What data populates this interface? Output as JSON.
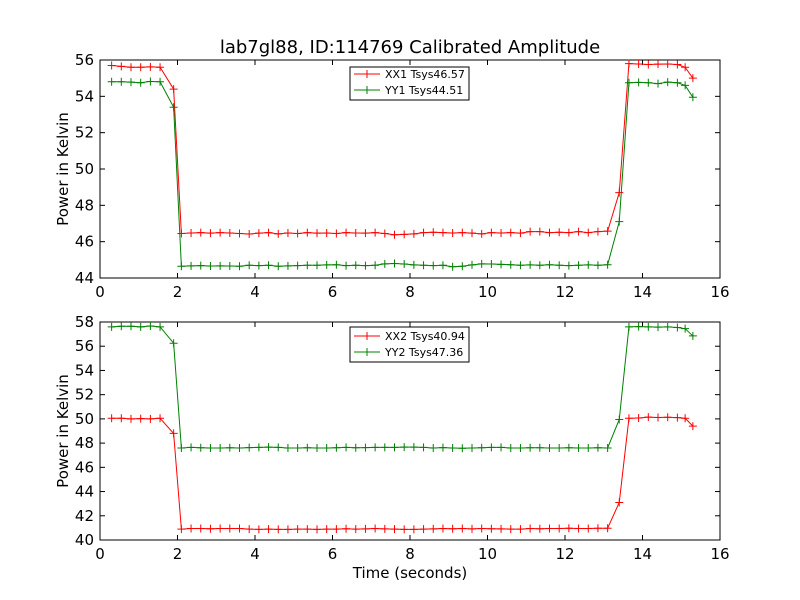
{
  "page": {
    "title": "lab7gl88, ID:114769 Calibrated Amplitude"
  },
  "chart_data": [
    {
      "type": "line",
      "title": "lab7gl88, ID:114769 Calibrated Amplitude",
      "xlabel": "",
      "ylabel": "Power in Kelvin",
      "xlim": [
        0,
        16
      ],
      "ylim": [
        44,
        56
      ],
      "xticks": [
        "0",
        "2",
        "4",
        "6",
        "8",
        "10",
        "12",
        "14",
        "16"
      ],
      "yticks": [
        "44",
        "46",
        "48",
        "50",
        "52",
        "54",
        "56"
      ],
      "grid": false,
      "legend_position": "top-center",
      "x": [
        0.3,
        0.55,
        0.8,
        1.05,
        1.3,
        1.55,
        1.9,
        2.1,
        2.35,
        2.6,
        2.85,
        3.1,
        3.35,
        3.6,
        3.85,
        4.1,
        4.35,
        4.6,
        4.85,
        5.1,
        5.35,
        5.6,
        5.85,
        6.1,
        6.35,
        6.6,
        6.85,
        7.1,
        7.35,
        7.6,
        7.85,
        8.1,
        8.35,
        8.6,
        8.85,
        9.1,
        9.35,
        9.6,
        9.85,
        10.1,
        10.35,
        10.6,
        10.85,
        11.1,
        11.35,
        11.6,
        11.85,
        12.1,
        12.35,
        12.6,
        12.85,
        13.1,
        13.4,
        13.65,
        13.9,
        14.15,
        14.4,
        14.65,
        14.9,
        15.1,
        15.3
      ],
      "series": [
        {
          "name": "XX1 Tsys46.57",
          "color": "#ff0000",
          "values": [
            55.7,
            55.65,
            55.6,
            55.6,
            55.62,
            55.6,
            54.4,
            46.45,
            46.48,
            46.5,
            46.47,
            46.5,
            46.48,
            46.45,
            46.42,
            46.47,
            46.5,
            46.43,
            46.48,
            46.45,
            46.5,
            46.47,
            46.48,
            46.45,
            46.5,
            46.48,
            46.47,
            46.5,
            46.45,
            46.38,
            46.4,
            46.43,
            46.5,
            46.52,
            46.5,
            46.48,
            46.5,
            46.47,
            46.43,
            46.5,
            46.48,
            46.5,
            46.47,
            46.55,
            46.55,
            46.5,
            46.52,
            46.5,
            46.55,
            46.5,
            46.55,
            46.58,
            48.7,
            55.8,
            55.78,
            55.75,
            55.77,
            55.78,
            55.75,
            55.6,
            55.0
          ]
        },
        {
          "name": "YY1 Tsys44.51",
          "color": "#008000",
          "values": [
            54.8,
            54.8,
            54.78,
            54.75,
            54.82,
            54.8,
            53.4,
            44.65,
            44.67,
            44.68,
            44.66,
            44.67,
            44.66,
            44.65,
            44.7,
            44.68,
            44.7,
            44.65,
            44.67,
            44.68,
            44.7,
            44.7,
            44.72,
            44.73,
            44.68,
            44.7,
            44.68,
            44.7,
            44.78,
            44.8,
            44.77,
            44.72,
            44.7,
            44.68,
            44.7,
            44.62,
            44.65,
            44.72,
            44.78,
            44.77,
            44.75,
            44.73,
            44.7,
            44.72,
            44.7,
            44.73,
            44.7,
            44.68,
            44.7,
            44.72,
            44.7,
            44.73,
            47.1,
            54.75,
            54.77,
            54.75,
            54.7,
            54.78,
            54.75,
            54.6,
            53.95
          ]
        }
      ]
    },
    {
      "type": "line",
      "title": "",
      "xlabel": "Time (seconds)",
      "ylabel": "Power in Kelvin",
      "xlim": [
        0,
        16
      ],
      "ylim": [
        40,
        58
      ],
      "xticks": [
        "0",
        "2",
        "4",
        "6",
        "8",
        "10",
        "12",
        "14",
        "16"
      ],
      "yticks": [
        "40",
        "42",
        "44",
        "46",
        "48",
        "50",
        "52",
        "54",
        "56",
        "58"
      ],
      "grid": false,
      "legend_position": "top-center",
      "x": [
        0.3,
        0.55,
        0.8,
        1.05,
        1.3,
        1.55,
        1.9,
        2.1,
        2.35,
        2.6,
        2.85,
        3.1,
        3.35,
        3.6,
        3.85,
        4.1,
        4.35,
        4.6,
        4.85,
        5.1,
        5.35,
        5.6,
        5.85,
        6.1,
        6.35,
        6.6,
        6.85,
        7.1,
        7.35,
        7.6,
        7.85,
        8.1,
        8.35,
        8.6,
        8.85,
        9.1,
        9.35,
        9.6,
        9.85,
        10.1,
        10.35,
        10.6,
        10.85,
        11.1,
        11.35,
        11.6,
        11.85,
        12.1,
        12.35,
        12.6,
        12.85,
        13.1,
        13.4,
        13.65,
        13.9,
        14.15,
        14.4,
        14.65,
        14.9,
        15.1,
        15.3
      ],
      "series": [
        {
          "name": "XX2 Tsys40.94",
          "color": "#ff0000",
          "values": [
            50.05,
            50.05,
            50.0,
            50.02,
            50.0,
            50.05,
            48.8,
            40.9,
            40.95,
            40.95,
            40.93,
            40.95,
            40.95,
            40.95,
            40.9,
            40.88,
            40.9,
            40.88,
            40.88,
            40.9,
            40.9,
            40.88,
            40.9,
            40.9,
            40.93,
            40.9,
            40.92,
            40.95,
            40.92,
            40.9,
            40.88,
            40.88,
            40.9,
            40.92,
            40.95,
            40.93,
            40.95,
            40.92,
            40.95,
            40.93,
            40.92,
            40.9,
            40.9,
            40.95,
            40.93,
            40.95,
            40.95,
            40.97,
            40.95,
            40.95,
            40.97,
            40.97,
            43.1,
            50.05,
            50.07,
            50.15,
            50.12,
            50.13,
            50.1,
            50.05,
            49.4
          ]
        },
        {
          "name": "YY2 Tsys47.36",
          "color": "#008000",
          "values": [
            57.6,
            57.65,
            57.65,
            57.6,
            57.67,
            57.6,
            56.25,
            47.6,
            47.65,
            47.62,
            47.6,
            47.6,
            47.62,
            47.6,
            47.63,
            47.65,
            47.67,
            47.65,
            47.6,
            47.6,
            47.62,
            47.6,
            47.6,
            47.62,
            47.65,
            47.62,
            47.63,
            47.65,
            47.65,
            47.65,
            47.67,
            47.67,
            47.65,
            47.6,
            47.63,
            47.6,
            47.58,
            47.6,
            47.62,
            47.65,
            47.65,
            47.6,
            47.6,
            47.62,
            47.62,
            47.6,
            47.6,
            47.62,
            47.6,
            47.6,
            47.62,
            47.6,
            49.95,
            57.6,
            57.62,
            57.6,
            57.58,
            57.6,
            57.55,
            57.45,
            56.85
          ]
        }
      ]
    }
  ]
}
